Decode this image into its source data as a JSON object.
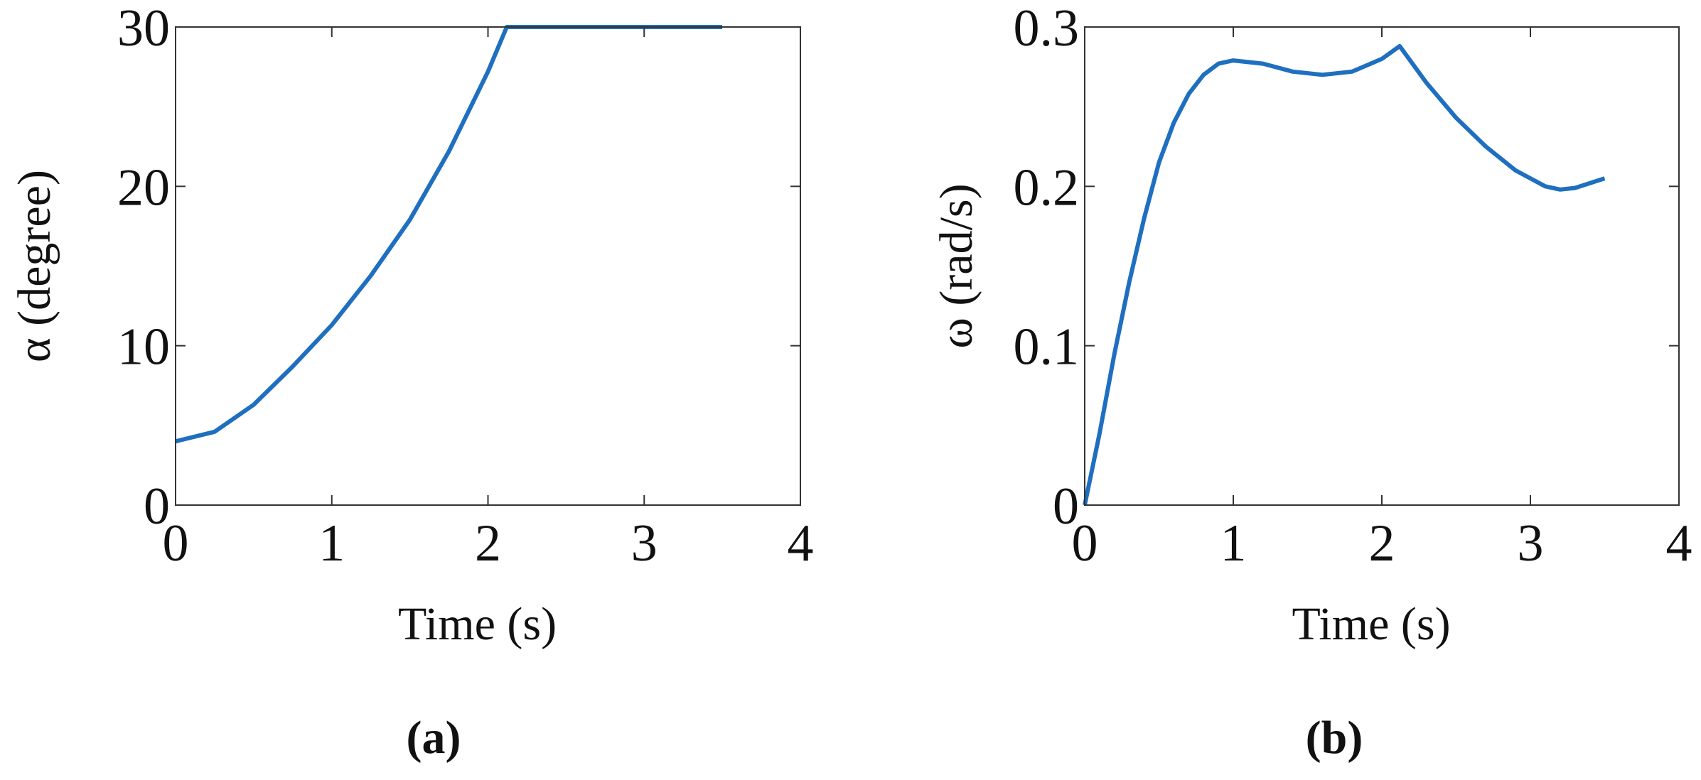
{
  "chart_data": [
    {
      "type": "line",
      "caption": "(a)",
      "xlabel": "Time (s)",
      "ylabel": "α (degree)",
      "color": "#1f6fc0",
      "xlim": [
        0,
        4
      ],
      "ylim": [
        0,
        30
      ],
      "xticks": [
        0,
        1,
        2,
        3,
        4
      ],
      "yticks": [
        0,
        10,
        20,
        30
      ],
      "x": [
        0,
        0.25,
        0.5,
        0.75,
        1,
        1.25,
        1.5,
        1.75,
        2,
        2.12,
        2.5,
        3,
        3.5
      ],
      "values": [
        4,
        4.6,
        6.3,
        8.7,
        11.3,
        14.4,
        17.9,
        22.2,
        27.2,
        30,
        30,
        30,
        30
      ]
    },
    {
      "type": "line",
      "caption": "(b)",
      "xlabel": "Time (s)",
      "ylabel": "ω (rad/s)",
      "color": "#1f6fc0",
      "xlim": [
        0,
        4
      ],
      "ylim": [
        0,
        0.3
      ],
      "xticks": [
        0,
        1,
        2,
        3,
        4
      ],
      "yticks": [
        0,
        0.1,
        0.2,
        0.3
      ],
      "x": [
        0,
        0.1,
        0.2,
        0.3,
        0.4,
        0.5,
        0.6,
        0.7,
        0.8,
        0.9,
        1.0,
        1.2,
        1.4,
        1.6,
        1.8,
        2.0,
        2.12,
        2.3,
        2.5,
        2.7,
        2.9,
        3.1,
        3.2,
        3.3,
        3.5
      ],
      "values": [
        0,
        0.045,
        0.095,
        0.14,
        0.18,
        0.215,
        0.24,
        0.258,
        0.27,
        0.277,
        0.279,
        0.277,
        0.272,
        0.27,
        0.272,
        0.28,
        0.288,
        0.265,
        0.243,
        0.225,
        0.21,
        0.2,
        0.198,
        0.199,
        0.205
      ]
    }
  ]
}
